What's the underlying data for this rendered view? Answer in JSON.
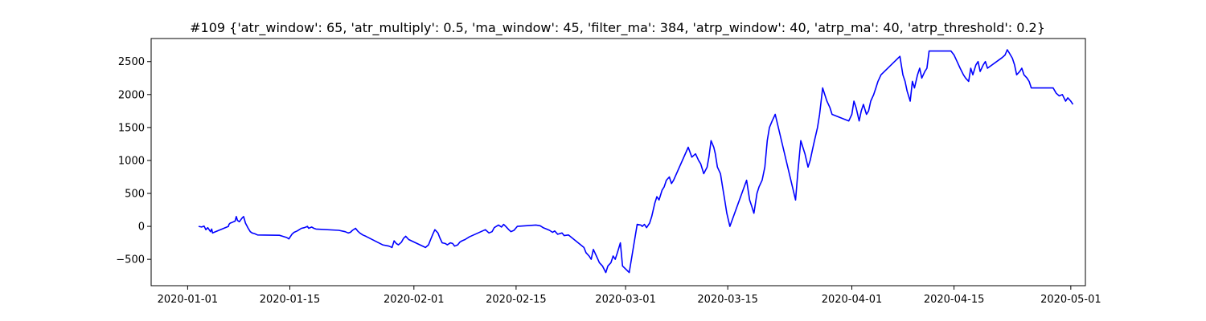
{
  "chart_data": {
    "type": "line",
    "title": "#109 {'atr_window': 65, 'atr_multiply': 0.5, 'ma_window': 45, 'filter_ma': 384, 'atrp_window': 40, 'atrp_ma': 40, 'atrp_threshold': 0.2}",
    "xlabel": "",
    "ylabel": "",
    "x_axis_type": "date",
    "xlim": [
      "2019-12-27",
      "2020-05-03"
    ],
    "ylim": [
      -900,
      2850
    ],
    "grid": false,
    "line_color": "#0000ff",
    "x_ticks": [
      {
        "value": "2020-01-01",
        "label": "2020-01-01"
      },
      {
        "value": "2020-01-15",
        "label": "2020-01-15"
      },
      {
        "value": "2020-02-01",
        "label": "2020-02-01"
      },
      {
        "value": "2020-02-15",
        "label": "2020-02-15"
      },
      {
        "value": "2020-03-01",
        "label": "2020-03-01"
      },
      {
        "value": "2020-03-15",
        "label": "2020-03-15"
      },
      {
        "value": "2020-04-01",
        "label": "2020-04-01"
      },
      {
        "value": "2020-04-15",
        "label": "2020-04-15"
      },
      {
        "value": "2020-05-01",
        "label": "2020-05-01"
      }
    ],
    "y_ticks": [
      {
        "value": -500,
        "label": "−500"
      },
      {
        "value": 0,
        "label": "0"
      },
      {
        "value": 500,
        "label": "500"
      },
      {
        "value": 1000,
        "label": "1000"
      },
      {
        "value": 1500,
        "label": "1500"
      },
      {
        "value": 2000,
        "label": "2000"
      },
      {
        "value": 2500,
        "label": "2500"
      }
    ],
    "series": [
      {
        "x": [
          "2020-01-02T12:00",
          "2020-01-02T22:00",
          "2020-01-03T06:00",
          "2020-01-03T12:00",
          "2020-01-03T18:00",
          "2020-01-04T03:00",
          "2020-01-04T07:00",
          "2020-01-04T10:00",
          "2020-01-06T14:00",
          "2020-01-06T16:00",
          "2020-01-06T20:00",
          "2020-01-07T02:00",
          "2020-01-07T12:00",
          "2020-01-07T16:00",
          "2020-01-07T20:00",
          "2020-01-08T02:00",
          "2020-01-08T10:00",
          "2020-01-08T16:00",
          "2020-01-08T22:00",
          "2020-01-09T07:00",
          "2020-01-09T14:00",
          "2020-01-09T20:00",
          "2020-01-10T04:00",
          "2020-01-10T14:00",
          "2020-01-13T14:00",
          "2020-01-14T00:00",
          "2020-01-14T14:00",
          "2020-01-14T21:00",
          "2020-01-15T07:00",
          "2020-01-15T14:00",
          "2020-01-16T00:00",
          "2020-01-16T07:00",
          "2020-01-16T14:00",
          "2020-01-17T00:00",
          "2020-01-17T10:00",
          "2020-01-17T14:00",
          "2020-01-18T00:00",
          "2020-01-18T07:00",
          "2020-01-18T14:00",
          "2020-01-21T17:00",
          "2020-01-22T14:00",
          "2020-01-23T00:00",
          "2020-01-23T07:00",
          "2020-01-23T14:00",
          "2020-01-24T00:00",
          "2020-01-24T07:00",
          "2020-01-24T14:00",
          "2020-01-25T00:00",
          "2020-01-25T10:00",
          "2020-01-27T17:00",
          "2020-01-28T14:00",
          "2020-01-29T00:00",
          "2020-01-29T07:00",
          "2020-01-29T14:00",
          "2020-01-29T21:00",
          "2020-01-30T07:00",
          "2020-01-30T14:00",
          "2020-01-30T21:00",
          "2020-01-31T07:00",
          "2020-02-02T14:00",
          "2020-02-03T00:00",
          "2020-02-03T07:00",
          "2020-02-03T14:00",
          "2020-02-03T21:00",
          "2020-02-04T07:00",
          "2020-02-04T14:00",
          "2020-02-04T21:00",
          "2020-02-05T07:00",
          "2020-02-05T14:00",
          "2020-02-06T00:00",
          "2020-02-06T07:00",
          "2020-02-06T14:00",
          "2020-02-07T00:00",
          "2020-02-07T07:00",
          "2020-02-07T14:00",
          "2020-02-08T00:00",
          "2020-02-08T14:00",
          "2020-02-10T19:00",
          "2020-02-11T07:00",
          "2020-02-11T17:00",
          "2020-02-12T00:00",
          "2020-02-12T07:00",
          "2020-02-12T14:00",
          "2020-02-13T00:00",
          "2020-02-13T07:00",
          "2020-02-13T14:00",
          "2020-02-14T00:00",
          "2020-02-14T07:00",
          "2020-02-14T17:00",
          "2020-02-15T04:00",
          "2020-02-17T17:00",
          "2020-02-18T07:00",
          "2020-02-18T17:00",
          "2020-02-19T04:00",
          "2020-02-19T14:00",
          "2020-02-20T00:00",
          "2020-02-20T07:00",
          "2020-02-20T17:00",
          "2020-02-21T07:00",
          "2020-02-21T14:00",
          "2020-02-22T04:00",
          "2020-02-24T07:00",
          "2020-02-24T14:00",
          "2020-02-25T00:00",
          "2020-02-25T07:00",
          "2020-02-25T14:00",
          "2020-02-26T00:00",
          "2020-02-26T10:00",
          "2020-02-26T20:00",
          "2020-02-27T07:00",
          "2020-02-27T14:00",
          "2020-02-28T00:00",
          "2020-02-28T07:00",
          "2020-02-28T14:00",
          "2020-02-28T21:00",
          "2020-02-29T07:00",
          "2020-02-29T14:00",
          "2020-03-01T12:00",
          "2020-03-02T14:00",
          "2020-03-03T02:00",
          "2020-03-03T07:00",
          "2020-03-03T14:00",
          "2020-03-03T21:00",
          "2020-03-04T07:00",
          "2020-03-04T14:00",
          "2020-03-05T00:00",
          "2020-03-05T07:00",
          "2020-03-05T14:00",
          "2020-03-06T00:00",
          "2020-03-06T07:00",
          "2020-03-06T14:00",
          "2020-03-07T00:00",
          "2020-03-07T07:00",
          "2020-03-07T14:00",
          "2020-03-09T14:00",
          "2020-03-10T02:00",
          "2020-03-10T14:00",
          "2020-03-11T00:00",
          "2020-03-11T07:00",
          "2020-03-11T17:00",
          "2020-03-12T04:00",
          "2020-03-12T10:00",
          "2020-03-12T17:00",
          "2020-03-13T02:00",
          "2020-03-13T07:00",
          "2020-03-13T14:00",
          "2020-03-14T00:00",
          "2020-03-14T07:00",
          "2020-03-14T14:00",
          "2020-03-14T21:00",
          "2020-03-15T07:00",
          "2020-03-17T14:00",
          "2020-03-18T00:00",
          "2020-03-18T07:00",
          "2020-03-18T14:00",
          "2020-03-19T00:00",
          "2020-03-19T07:00",
          "2020-03-19T17:00",
          "2020-03-20T02:00",
          "2020-03-20T10:00",
          "2020-03-20T17:00",
          "2020-03-21T02:00",
          "2020-03-21T12:00",
          "2020-03-24T07:00",
          "2020-03-24T14:00",
          "2020-03-25T00:00",
          "2020-03-25T07:00",
          "2020-03-25T14:00",
          "2020-03-26T00:00",
          "2020-03-26T07:00",
          "2020-03-26T14:00",
          "2020-03-26T21:00",
          "2020-03-27T07:00",
          "2020-03-27T14:00",
          "2020-03-28T00:00",
          "2020-03-28T07:00",
          "2020-03-28T14:00",
          "2020-03-29T00:00",
          "2020-03-29T07:00",
          "2020-03-31T14:00",
          "2020-04-01T00:00",
          "2020-04-01T07:00",
          "2020-04-01T14:00",
          "2020-04-02T00:00",
          "2020-04-02T07:00",
          "2020-04-02T14:00",
          "2020-04-03T00:00",
          "2020-04-03T07:00",
          "2020-04-03T14:00",
          "2020-04-04T00:00",
          "2020-04-04T07:00",
          "2020-04-04T14:00",
          "2020-04-05T00:00",
          "2020-04-07T14:00",
          "2020-04-08T00:00",
          "2020-04-08T07:00",
          "2020-04-08T14:00",
          "2020-04-09T00:00",
          "2020-04-09T07:00",
          "2020-04-09T14:00",
          "2020-04-10T00:00",
          "2020-04-10T07:00",
          "2020-04-10T14:00",
          "2020-04-11T00:00",
          "2020-04-11T07:00",
          "2020-04-11T14:00",
          "2020-04-14T14:00",
          "2020-04-15T00:00",
          "2020-04-15T10:00",
          "2020-04-15T20:00",
          "2020-04-16T07:00",
          "2020-04-16T14:00",
          "2020-04-17T00:00",
          "2020-04-17T07:00",
          "2020-04-17T14:00",
          "2020-04-18T00:00",
          "2020-04-18T07:00",
          "2020-04-18T14:00",
          "2020-04-19T00:00",
          "2020-04-19T07:00",
          "2020-04-19T14:00",
          "2020-04-21T14:00",
          "2020-04-22T00:00",
          "2020-04-22T07:00",
          "2020-04-22T14:00",
          "2020-04-23T00:00",
          "2020-04-23T07:00",
          "2020-04-23T14:00",
          "2020-04-24T00:00",
          "2020-04-24T07:00",
          "2020-04-24T14:00",
          "2020-04-25T00:00",
          "2020-04-25T07:00",
          "2020-04-25T14:00",
          "2020-04-28T14:00",
          "2020-04-29T00:00",
          "2020-04-29T10:00",
          "2020-04-29T20:00",
          "2020-04-30T07:00",
          "2020-04-30T14:00",
          "2020-05-01T00:00",
          "2020-05-01T07:00"
        ],
        "y": [
          0,
          -10,
          5,
          -50,
          -20,
          -80,
          -40,
          -100,
          0,
          30,
          50,
          60,
          80,
          150,
          90,
          70,
          120,
          150,
          50,
          -30,
          -80,
          -100,
          -110,
          -130,
          -135,
          -150,
          -170,
          -190,
          -120,
          -90,
          -70,
          -50,
          -30,
          -20,
          0,
          -30,
          -10,
          -30,
          -40,
          -60,
          -80,
          -100,
          -90,
          -60,
          -30,
          -70,
          -100,
          -130,
          -150,
          -280,
          -300,
          -320,
          -220,
          -260,
          -280,
          -240,
          -180,
          -150,
          -200,
          -320,
          -280,
          -200,
          -120,
          -50,
          -100,
          -180,
          -250,
          -260,
          -280,
          -250,
          -260,
          -300,
          -280,
          -240,
          -220,
          -200,
          -160,
          -50,
          -100,
          -80,
          -20,
          0,
          20,
          -10,
          30,
          0,
          -50,
          -80,
          -60,
          0,
          20,
          10,
          -20,
          -40,
          -60,
          -90,
          -70,
          -120,
          -100,
          -140,
          -130,
          -320,
          -400,
          -450,
          -500,
          -350,
          -450,
          -550,
          -600,
          -700,
          -600,
          -550,
          -450,
          -500,
          -400,
          -250,
          -600,
          -700,
          30,
          20,
          0,
          30,
          -20,
          50,
          150,
          350,
          450,
          400,
          550,
          600,
          700,
          750,
          650,
          700,
          1200,
          1050,
          1100,
          1000,
          950,
          800,
          900,
          1050,
          1300,
          1200,
          1100,
          900,
          800,
          600,
          400,
          200,
          0,
          700,
          400,
          300,
          200,
          500,
          600,
          700,
          900,
          1300,
          1500,
          1600,
          1700,
          400,
          800,
          1300,
          1200,
          1100,
          900,
          1000,
          1150,
          1300,
          1500,
          1700,
          2100,
          2000,
          1900,
          1800,
          1700,
          1600,
          1700,
          1900,
          1800,
          1600,
          1750,
          1850,
          1700,
          1750,
          1900,
          2000,
          2100,
          2200,
          2300,
          2580,
          2300,
          2200,
          2050,
          1900,
          2200,
          2100,
          2300,
          2400,
          2250,
          2350,
          2400,
          2660,
          2660,
          2600,
          2500,
          2400,
          2300,
          2250,
          2200,
          2400,
          2300,
          2450,
          2500,
          2350,
          2450,
          2500,
          2400,
          2560,
          2600,
          2680,
          2630,
          2550,
          2450,
          2300,
          2350,
          2400,
          2300,
          2250,
          2200,
          2100,
          2100,
          2020,
          1980,
          2000,
          1900,
          1950,
          1900,
          1850
        ]
      }
    ]
  }
}
